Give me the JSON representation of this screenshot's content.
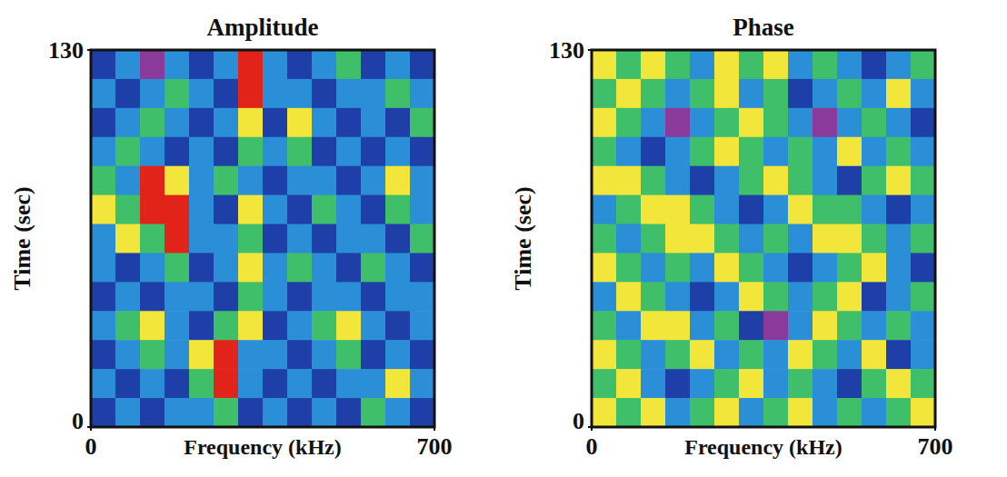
{
  "chart_data": [
    {
      "type": "heatmap",
      "title": "Amplitude",
      "x_label": "Frequency (kHz)",
      "y_label": "Time (sec)",
      "xlim": [
        0,
        700
      ],
      "ylim": [
        0,
        130
      ],
      "xticks": [
        0,
        700
      ],
      "yticks": [
        0,
        130
      ],
      "colors": [
        "#8a3a9a",
        "#1f3fa8",
        "#2b8fd8",
        "#3fbf6a",
        "#f2e63a",
        "#e2231a"
      ],
      "x": [
        25,
        75,
        125,
        175,
        225,
        275,
        325,
        375,
        425,
        475,
        525,
        575,
        625,
        675
      ],
      "y": [
        125,
        115,
        105,
        95,
        85,
        75,
        65,
        55,
        45,
        35,
        25,
        15,
        5
      ],
      "values": [
        [
          1,
          2,
          0,
          2,
          1,
          2,
          5,
          2,
          1,
          2,
          3,
          1,
          2,
          1
        ],
        [
          2,
          1,
          2,
          3,
          2,
          1,
          5,
          2,
          2,
          1,
          2,
          2,
          3,
          2
        ],
        [
          1,
          2,
          3,
          2,
          1,
          2,
          4,
          1,
          4,
          2,
          1,
          2,
          1,
          3
        ],
        [
          2,
          3,
          2,
          1,
          2,
          1,
          3,
          2,
          3,
          1,
          2,
          1,
          2,
          1
        ],
        [
          3,
          2,
          5,
          4,
          2,
          3,
          2,
          1,
          2,
          2,
          1,
          2,
          4,
          2
        ],
        [
          4,
          3,
          5,
          5,
          2,
          1,
          4,
          2,
          1,
          3,
          2,
          1,
          3,
          2
        ],
        [
          2,
          4,
          3,
          5,
          2,
          2,
          3,
          1,
          2,
          1,
          2,
          2,
          1,
          3
        ],
        [
          2,
          1,
          2,
          3,
          1,
          2,
          4,
          2,
          3,
          2,
          1,
          3,
          2,
          1
        ],
        [
          1,
          2,
          1,
          2,
          2,
          1,
          3,
          2,
          1,
          2,
          2,
          1,
          2,
          2
        ],
        [
          2,
          3,
          4,
          2,
          1,
          3,
          4,
          1,
          2,
          3,
          4,
          2,
          1,
          2
        ],
        [
          1,
          2,
          3,
          2,
          4,
          5,
          2,
          2,
          1,
          2,
          3,
          1,
          2,
          1
        ],
        [
          2,
          1,
          2,
          1,
          3,
          5,
          2,
          1,
          2,
          1,
          2,
          2,
          4,
          2
        ],
        [
          1,
          2,
          1,
          2,
          2,
          3,
          1,
          2,
          1,
          2,
          1,
          3,
          2,
          1
        ]
      ]
    },
    {
      "type": "heatmap",
      "title": "Phase",
      "x_label": "Frequency (kHz)",
      "y_label": "Time (sec)",
      "xlim": [
        0,
        700
      ],
      "ylim": [
        0,
        130
      ],
      "xticks": [
        0,
        700
      ],
      "yticks": [
        0,
        130
      ],
      "colors": [
        "#8a3a9a",
        "#1f3fa8",
        "#2b8fd8",
        "#3fbf6a",
        "#f2e63a",
        "#e2231a"
      ],
      "x": [
        25,
        75,
        125,
        175,
        225,
        275,
        325,
        375,
        425,
        475,
        525,
        575,
        625,
        675
      ],
      "y": [
        125,
        115,
        105,
        95,
        85,
        75,
        65,
        55,
        45,
        35,
        25,
        15,
        5
      ],
      "values": [
        [
          4,
          3,
          4,
          3,
          2,
          4,
          3,
          4,
          2,
          3,
          2,
          1,
          2,
          3
        ],
        [
          3,
          4,
          3,
          2,
          3,
          4,
          2,
          3,
          1,
          2,
          3,
          2,
          4,
          2
        ],
        [
          4,
          3,
          2,
          0,
          2,
          3,
          4,
          3,
          2,
          0,
          2,
          3,
          2,
          1
        ],
        [
          3,
          2,
          1,
          2,
          3,
          4,
          3,
          2,
          3,
          2,
          4,
          2,
          3,
          2
        ],
        [
          4,
          4,
          3,
          2,
          1,
          2,
          3,
          4,
          3,
          2,
          1,
          3,
          4,
          3
        ],
        [
          2,
          3,
          4,
          4,
          3,
          2,
          1,
          2,
          4,
          3,
          3,
          2,
          1,
          2
        ],
        [
          3,
          2,
          3,
          4,
          4,
          3,
          2,
          3,
          2,
          4,
          4,
          3,
          2,
          3
        ],
        [
          4,
          3,
          2,
          3,
          2,
          4,
          3,
          2,
          1,
          2,
          3,
          4,
          2,
          1
        ],
        [
          2,
          4,
          3,
          2,
          1,
          2,
          4,
          3,
          2,
          3,
          4,
          1,
          2,
          3
        ],
        [
          3,
          2,
          4,
          4,
          2,
          3,
          1,
          0,
          2,
          4,
          3,
          2,
          3,
          2
        ],
        [
          4,
          3,
          2,
          3,
          4,
          2,
          3,
          2,
          4,
          3,
          2,
          4,
          1,
          2
        ],
        [
          3,
          4,
          2,
          1,
          2,
          3,
          4,
          2,
          3,
          2,
          1,
          3,
          4,
          3
        ],
        [
          4,
          3,
          4,
          2,
          3,
          4,
          2,
          3,
          4,
          2,
          3,
          2,
          3,
          4
        ]
      ]
    }
  ]
}
